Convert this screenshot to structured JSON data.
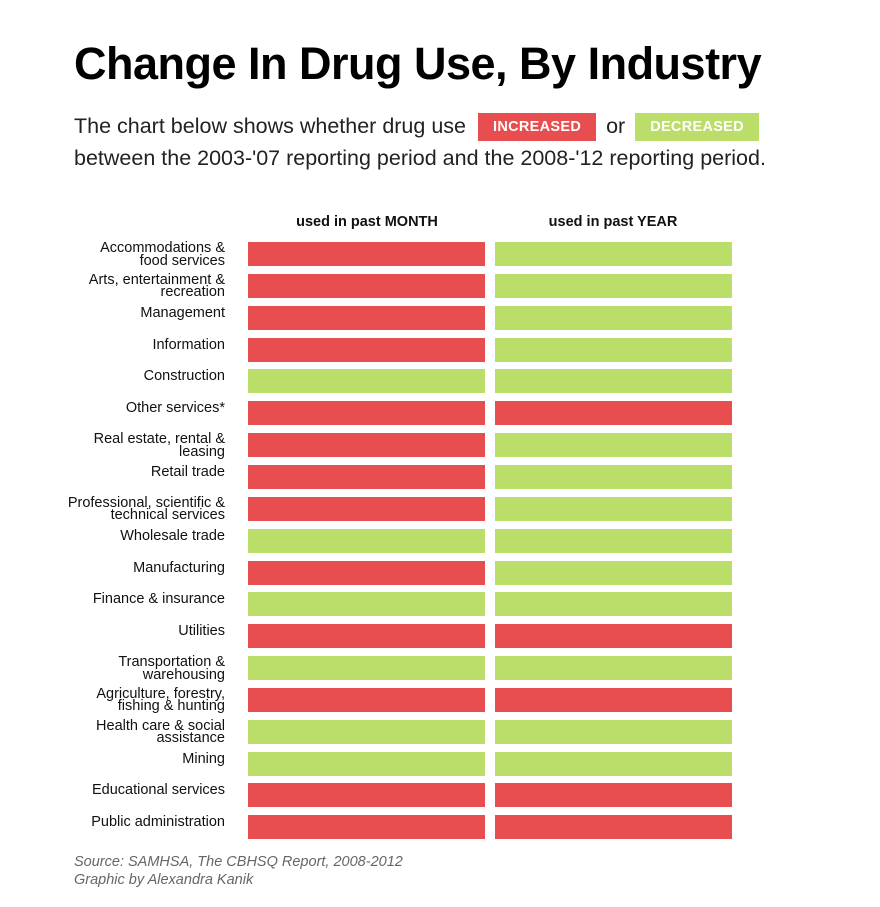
{
  "header": {
    "title": "Change In Drug Use, By Industry",
    "subtitle_pre": "The chart below shows whether drug use",
    "subtitle_or": "or",
    "subtitle_post": "between the 2003-'07 reporting period and the 2008-'12 reporting period.",
    "legend_increased": "INCREASED",
    "legend_decreased": "DECREASED"
  },
  "colors": {
    "increased": "#e84d50",
    "decreased": "#bbdd6a"
  },
  "chart_data": {
    "type": "table",
    "title": "Change In Drug Use, By Industry",
    "columns": [
      "used in past MONTH",
      "used in past YEAR"
    ],
    "legend": {
      "increased": "INCREASED",
      "decreased": "DECREASED"
    },
    "rows": [
      {
        "label": [
          "Accommodations &",
          "food services"
        ],
        "month": "increased",
        "year": "decreased"
      },
      {
        "label": [
          "Arts, entertainment &",
          "recreation"
        ],
        "month": "increased",
        "year": "decreased"
      },
      {
        "label": [
          "Management"
        ],
        "month": "increased",
        "year": "decreased"
      },
      {
        "label": [
          "Information"
        ],
        "month": "increased",
        "year": "decreased"
      },
      {
        "label": [
          "Construction"
        ],
        "month": "decreased",
        "year": "decreased"
      },
      {
        "label": [
          "Other services*"
        ],
        "month": "increased",
        "year": "increased"
      },
      {
        "label": [
          "Real estate, rental &",
          "leasing"
        ],
        "month": "increased",
        "year": "decreased"
      },
      {
        "label": [
          "Retail trade"
        ],
        "month": "increased",
        "year": "decreased"
      },
      {
        "label": [
          "Professional, scientific &",
          "technical services"
        ],
        "month": "increased",
        "year": "decreased"
      },
      {
        "label": [
          "Wholesale trade"
        ],
        "month": "decreased",
        "year": "decreased"
      },
      {
        "label": [
          "Manufacturing"
        ],
        "month": "increased",
        "year": "decreased"
      },
      {
        "label": [
          "Finance & insurance"
        ],
        "month": "decreased",
        "year": "decreased"
      },
      {
        "label": [
          "Utilities"
        ],
        "month": "increased",
        "year": "increased"
      },
      {
        "label": [
          "Transportation &",
          "warehousing"
        ],
        "month": "decreased",
        "year": "decreased"
      },
      {
        "label": [
          "Agriculture, forestry,",
          "fishing & hunting"
        ],
        "month": "increased",
        "year": "increased"
      },
      {
        "label": [
          "Health care & social",
          "assistance"
        ],
        "month": "decreased",
        "year": "decreased"
      },
      {
        "label": [
          "Mining"
        ],
        "month": "decreased",
        "year": "decreased"
      },
      {
        "label": [
          "Educational services"
        ],
        "month": "increased",
        "year": "increased"
      },
      {
        "label": [
          "Public administration"
        ],
        "month": "increased",
        "year": "increased"
      }
    ]
  },
  "footer": {
    "source": "Source: SAMHSA, The CBHSQ Report, 2008-2012",
    "credit": "Graphic by Alexandra Kanik"
  }
}
